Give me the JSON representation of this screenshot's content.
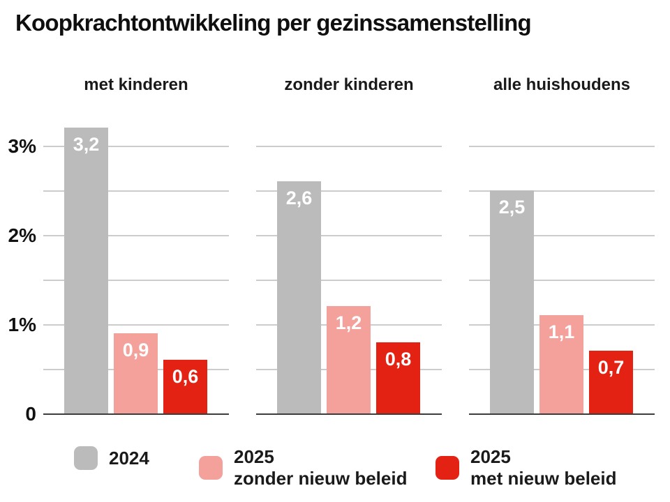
{
  "title": "Koopkrachtontwikkeling per gezinssamenstelling",
  "column_headers": [
    "met kinderen",
    "zonder kinderen",
    "alle huishoudens"
  ],
  "y_axis": {
    "tick_labels": [
      "3%",
      "2%",
      "1%",
      "0"
    ]
  },
  "legend": {
    "items": [
      {
        "color": "#bbbbbb",
        "line1": "2024",
        "line2": ""
      },
      {
        "color": "#f4a19c",
        "line1": "2025",
        "line2": "zonder nieuw beleid"
      },
      {
        "color": "#e32213",
        "line1": "2025",
        "line2": "met nieuw beleid"
      }
    ]
  },
  "chart_data": {
    "type": "bar",
    "title": "Koopkrachtontwikkeling per gezinssamenstelling",
    "categories": [
      "met kinderen",
      "zonder kinderen",
      "alle huishoudens"
    ],
    "series": [
      {
        "name": "2024",
        "color": "#bbbbbb",
        "values": [
          3.2,
          2.6,
          2.5
        ],
        "value_labels": [
          "3,2",
          "2,6",
          "2,5"
        ],
        "label_color": "#ffffff"
      },
      {
        "name": "2025 zonder nieuw beleid",
        "color": "#f4a19c",
        "values": [
          0.9,
          1.2,
          1.1
        ],
        "value_labels": [
          "0,9",
          "1,2",
          "1,1"
        ],
        "label_color": "#ffffff"
      },
      {
        "name": "2025 met nieuw beleid",
        "color": "#e32213",
        "values": [
          0.6,
          0.8,
          0.7
        ],
        "value_labels": [
          "0,6",
          "0,8",
          "0,7"
        ],
        "label_color": "#ffffff"
      }
    ],
    "unit": "percent",
    "decimal_separator": ",",
    "ylim": [
      0,
      3.3
    ],
    "yticks": [
      {
        "value": 3,
        "label": "3%"
      },
      {
        "value": 2,
        "label": "2%"
      },
      {
        "value": 1,
        "label": "1%"
      },
      {
        "value": 0,
        "label": "0"
      }
    ],
    "gridline_interval": 0.5,
    "grid": true,
    "value_labels_shown": true,
    "legend_position": "bottom"
  },
  "colors": {
    "background": "#ffffff",
    "text": "#1a1a1a",
    "gridline": "#cccccc",
    "baseline": "#3c3c3b",
    "bar_label": "#ffffff"
  }
}
